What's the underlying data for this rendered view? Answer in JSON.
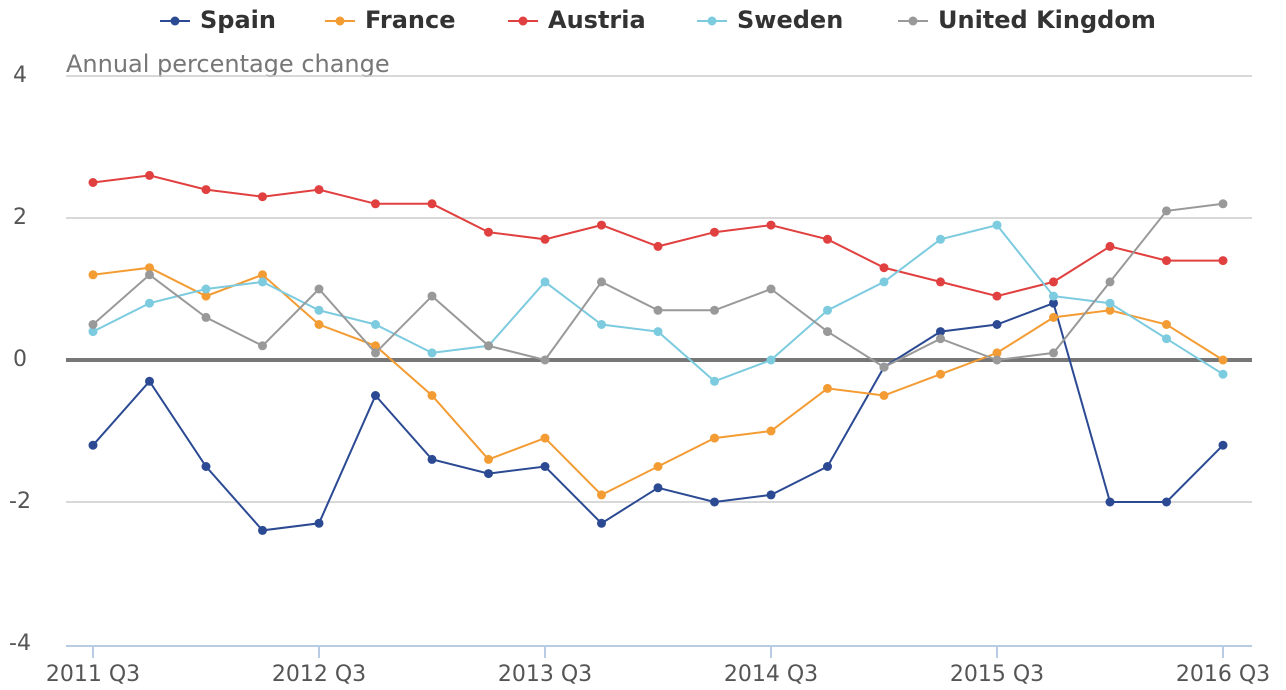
{
  "chart_data": {
    "type": "line",
    "subtitle": "Annual percentage change",
    "categories": [
      "2011 Q3",
      null,
      null,
      null,
      "2012 Q3",
      null,
      null,
      null,
      "2013 Q3",
      null,
      null,
      null,
      "2014 Q3",
      null,
      null,
      null,
      "2015 Q3",
      null,
      null,
      null,
      "2016 Q3"
    ],
    "series": [
      {
        "name": "Spain",
        "color": "#2b4a93",
        "values": [
          -1.2,
          -0.3,
          -1.5,
          -2.4,
          -2.3,
          -0.5,
          -1.4,
          -1.6,
          -1.5,
          -2.3,
          -1.8,
          -2.0,
          -1.9,
          -1.5,
          -0.1,
          0.4,
          0.5,
          0.8,
          -2.0,
          -2.0,
          -1.2
        ]
      },
      {
        "name": "France",
        "color": "#f39c34",
        "values": [
          1.2,
          1.3,
          0.9,
          1.2,
          0.5,
          0.2,
          -0.5,
          -1.4,
          -1.1,
          -1.9,
          -1.5,
          -1.1,
          -1.0,
          -0.4,
          -0.5,
          -0.2,
          0.1,
          0.6,
          0.7,
          0.5,
          0.0
        ]
      },
      {
        "name": "Austria",
        "color": "#e0403f",
        "values": [
          2.5,
          2.6,
          2.4,
          2.3,
          2.4,
          2.2,
          2.2,
          1.8,
          1.7,
          1.9,
          1.6,
          1.8,
          1.9,
          1.7,
          1.3,
          1.1,
          0.9,
          1.1,
          1.6,
          1.4,
          1.4
        ]
      },
      {
        "name": "Sweden",
        "color": "#7ccbdf",
        "values": [
          0.4,
          0.8,
          1.0,
          1.1,
          0.7,
          0.5,
          0.1,
          0.2,
          1.1,
          0.5,
          0.4,
          -0.3,
          0.0,
          0.7,
          1.1,
          1.7,
          1.9,
          0.9,
          0.8,
          0.3,
          -0.2
        ]
      },
      {
        "name": "United Kingdom",
        "color": "#999999",
        "values": [
          0.5,
          1.2,
          0.6,
          0.2,
          1.0,
          0.1,
          0.9,
          0.2,
          0.0,
          1.1,
          0.7,
          0.7,
          1.0,
          0.4,
          -0.1,
          0.3,
          0.0,
          0.1,
          1.1,
          2.1,
          2.2
        ]
      }
    ],
    "ylim": [
      -4,
      4
    ],
    "yticks": [
      -4,
      -2,
      0,
      2,
      4
    ],
    "grid": true,
    "legend": "top"
  }
}
